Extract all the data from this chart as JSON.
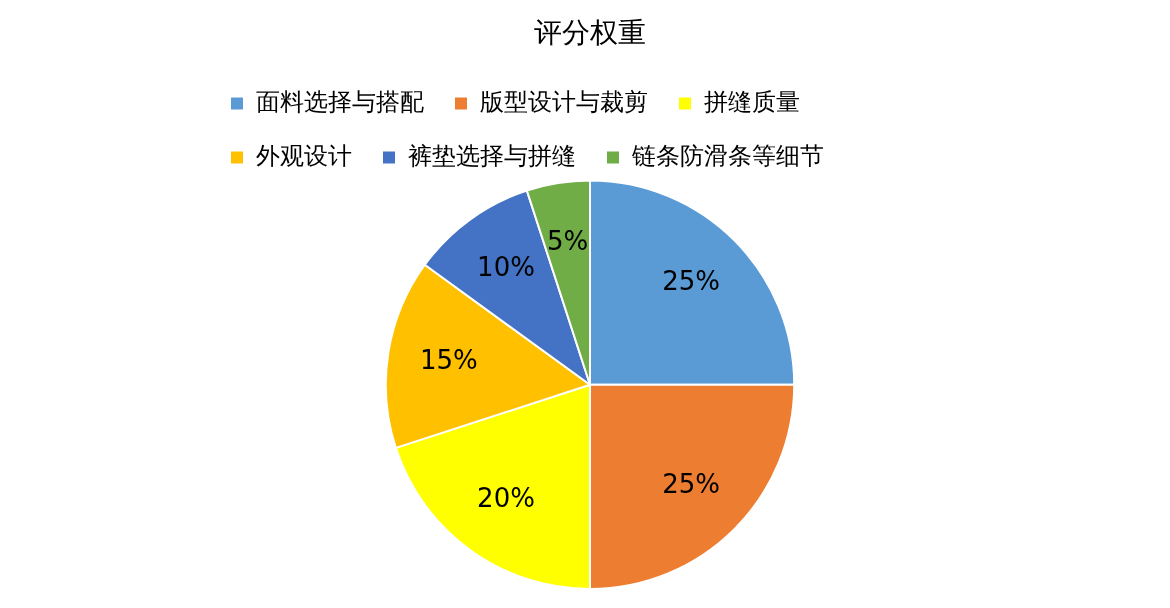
{
  "chart_data": {
    "type": "pie",
    "title": "评分权重",
    "categories": [
      "面料选择与搭配",
      "版型设计与裁剪",
      "拼缝质量",
      "外观设计",
      "裤垫选择与拼缝",
      "链条防滑条等细节"
    ],
    "values": [
      25,
      25,
      20,
      15,
      10,
      5
    ],
    "colors": [
      "#5b9bd5",
      "#ed7d31",
      "#ffff00",
      "#ffc000",
      "#4472c4",
      "#70ad47"
    ],
    "value_labels": [
      "25%",
      "25%",
      "20%",
      "15%",
      "10%",
      "5%"
    ],
    "legend": "top"
  }
}
